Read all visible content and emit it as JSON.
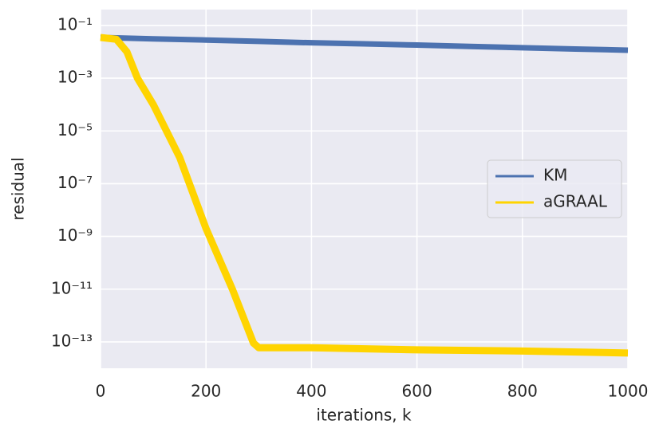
{
  "chart_data": {
    "type": "line",
    "xlabel": "iterations, k",
    "ylabel": "residual",
    "xlim": [
      0,
      1000
    ],
    "xticks": [
      0,
      200,
      400,
      600,
      800,
      1000
    ],
    "ylim": [
      1e-14,
      0.4
    ],
    "yscale": "log",
    "yticks": [
      {
        "value": 0.1,
        "label": "10⁻¹"
      },
      {
        "value": 0.001,
        "label": "10⁻³"
      },
      {
        "value": 1e-05,
        "label": "10⁻⁵"
      },
      {
        "value": 1e-07,
        "label": "10⁻⁷"
      },
      {
        "value": 1e-09,
        "label": "10⁻⁹"
      },
      {
        "value": 1e-11,
        "label": "10⁻¹¹"
      },
      {
        "value": 1e-13,
        "label": "10⁻¹³"
      }
    ],
    "grid": true,
    "legend": "center right",
    "series": [
      {
        "name": "KM",
        "color": "#4c72b0",
        "x": [
          0,
          100,
          200,
          300,
          400,
          500,
          600,
          700,
          800,
          900,
          1000
        ],
        "values": [
          0.035,
          0.031,
          0.028,
          0.025,
          0.022,
          0.02,
          0.018,
          0.016,
          0.0143,
          0.0128,
          0.0115
        ]
      },
      {
        "name": "aGRAAL",
        "color": "#ffd400",
        "x": [
          0,
          30,
          50,
          70,
          100,
          150,
          200,
          250,
          290,
          300,
          400,
          600,
          800,
          1000
        ],
        "values": [
          0.035,
          0.03,
          0.01,
          0.001,
          0.0001,
          1e-06,
          2e-09,
          1e-11,
          9e-14,
          6e-14,
          6e-14,
          5e-14,
          4.5e-14,
          3.8e-14
        ]
      }
    ]
  }
}
